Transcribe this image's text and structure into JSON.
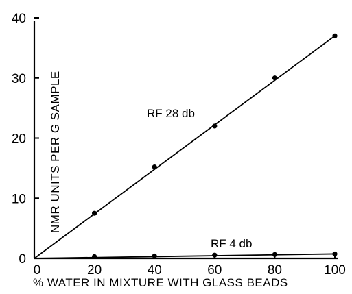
{
  "chart_data": {
    "type": "line",
    "title": "",
    "xlabel": "% WATER IN MIXTURE WITH GLASS BEADS",
    "ylabel": "NMR UNITS PER G SAMPLE",
    "xlim": [
      0,
      100
    ],
    "ylim": [
      0,
      40
    ],
    "x_ticks": [
      0,
      20,
      40,
      60,
      80,
      100
    ],
    "y_ticks": [
      0,
      10,
      20,
      30,
      40
    ],
    "grid": false,
    "legend": "none",
    "series": [
      {
        "name": "RF 28 db",
        "x": [
          20,
          40,
          60,
          80,
          100
        ],
        "values": [
          7.5,
          15.2,
          22.0,
          30.0,
          37.0
        ]
      },
      {
        "name": "RF 4 db",
        "x": [
          20,
          40,
          60,
          80,
          100
        ],
        "values": [
          0.3,
          0.4,
          0.55,
          0.65,
          0.75
        ]
      }
    ]
  }
}
